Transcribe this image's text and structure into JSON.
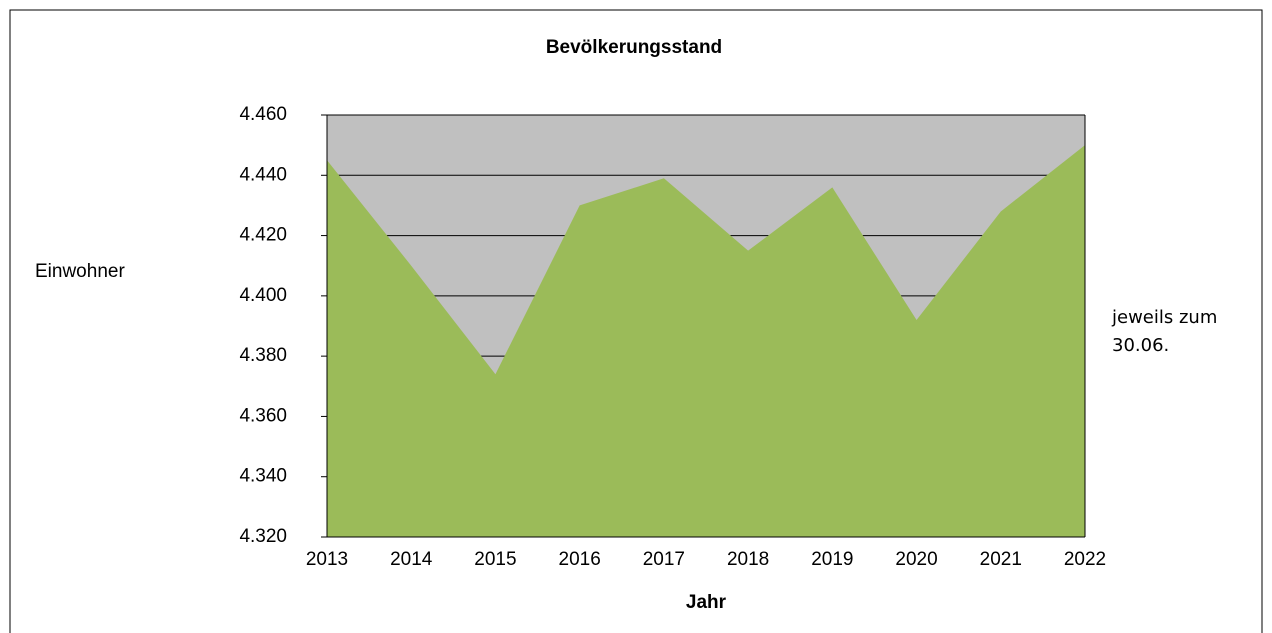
{
  "chart_data": {
    "type": "area",
    "title": "Bevölkerungsstand",
    "x_label": "Jahr",
    "y_label": "Einwohner",
    "annotation": [
      "jeweils zum",
      "30.06."
    ],
    "categories": [
      "2013",
      "2014",
      "2015",
      "2016",
      "2017",
      "2018",
      "2019",
      "2020",
      "2021",
      "2022"
    ],
    "values": [
      4445,
      4410,
      4374,
      4430,
      4439,
      4415,
      4436,
      4392,
      4428,
      4450
    ],
    "color": "#9bbb59",
    "plot_background": "#c0c0c0",
    "ylim": [
      4320,
      4460
    ],
    "yticks": [
      {
        "value": 4320,
        "label": "4.320"
      },
      {
        "value": 4340,
        "label": "4.340"
      },
      {
        "value": 4360,
        "label": "4.360"
      },
      {
        "value": 4380,
        "label": "4.380"
      },
      {
        "value": 4400,
        "label": "4.400"
      },
      {
        "value": 4420,
        "label": "4.420"
      },
      {
        "value": 4440,
        "label": "4.440"
      },
      {
        "value": 4460,
        "label": "4.460"
      }
    ],
    "grid": true
  }
}
